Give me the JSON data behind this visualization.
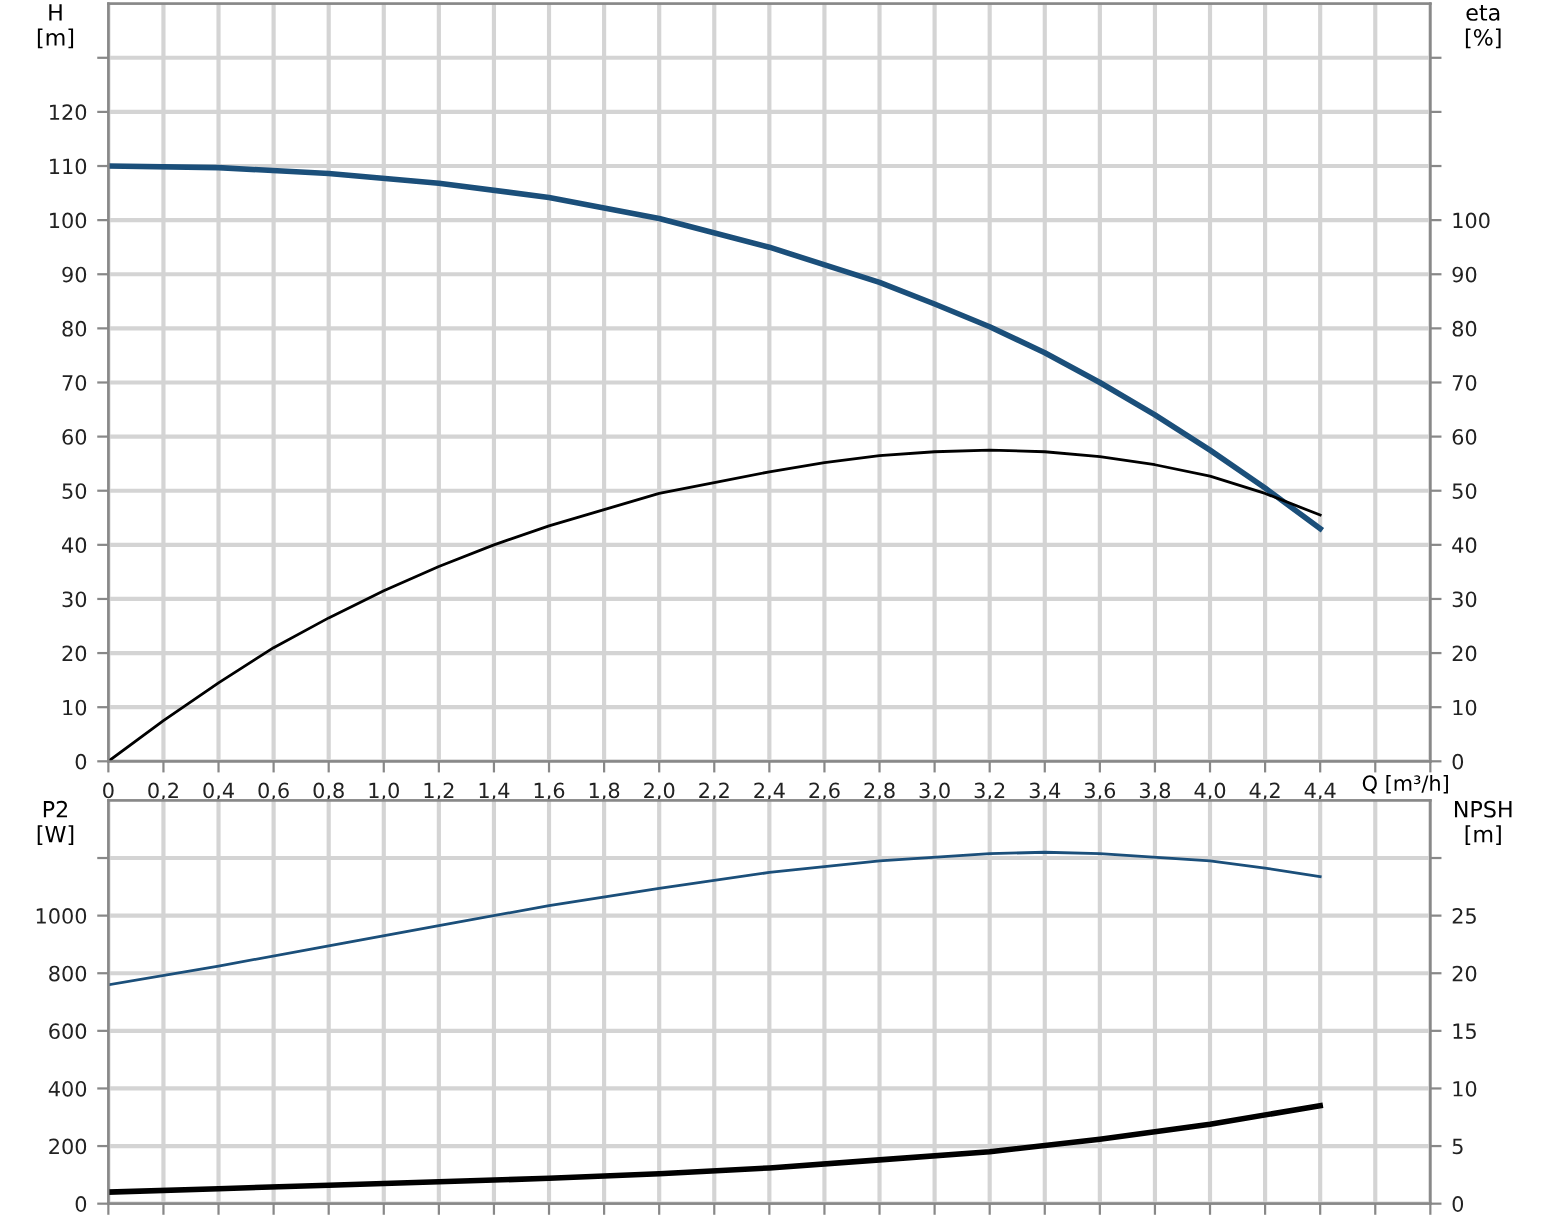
{
  "chart_data": [
    {
      "type": "line",
      "xlabel": "Q [m³/h]",
      "ylabel": "H\n[m]",
      "y2label": "eta\n[%]",
      "grid": true,
      "xlim": [
        0,
        4.8
      ],
      "xticks": [
        0,
        {
          "value": 0.2,
          "label": "0,2"
        },
        {
          "value": 0.4,
          "label": "0,4"
        },
        {
          "value": 0.6,
          "label": "0,6"
        },
        {
          "value": 0.8,
          "label": "0,8"
        },
        {
          "value": 1.0,
          "label": "1,0"
        },
        {
          "value": 1.2,
          "label": "1,2"
        },
        {
          "value": 1.4,
          "label": "1,4"
        },
        {
          "value": 1.6,
          "label": "1,6"
        },
        {
          "value": 1.8,
          "label": "1,8"
        },
        {
          "value": 2.0,
          "label": "2,0"
        },
        {
          "value": 2.2,
          "label": "2,2"
        },
        {
          "value": 2.4,
          "label": "2,4"
        },
        {
          "value": 2.6,
          "label": "2,6"
        },
        {
          "value": 2.8,
          "label": "2,8"
        },
        {
          "value": 3.0,
          "label": "3,0"
        },
        {
          "value": 3.2,
          "label": "3,2"
        },
        {
          "value": 3.4,
          "label": "3,4"
        },
        {
          "value": 3.6,
          "label": "3,6"
        },
        {
          "value": 3.8,
          "label": "3,8"
        },
        {
          "value": 4.0,
          "label": "4,0"
        },
        {
          "value": 4.2,
          "label": "4,2"
        },
        {
          "value": 4.4,
          "label": "4,4"
        },
        {
          "value": 4.6,
          "label": null
        },
        {
          "value": 4.8,
          "label": null
        }
      ],
      "ylim": [
        0,
        140
      ],
      "yticks": [
        0,
        10,
        20,
        30,
        40,
        50,
        60,
        70,
        80,
        90,
        100,
        110,
        120,
        {
          "value": 130,
          "label": null
        }
      ],
      "y2lim": [
        0,
        140
      ],
      "y2ticks": [
        0,
        10,
        20,
        30,
        40,
        50,
        60,
        70,
        80,
        90,
        100,
        {
          "value": 110,
          "label": null
        },
        {
          "value": 120,
          "label": null
        },
        {
          "value": 130,
          "label": null
        }
      ],
      "series": [
        {
          "color": "#1b4f7a",
          "x": [
            0,
            0.4,
            0.8,
            1.2,
            1.6,
            2.0,
            2.4,
            2.8,
            3.0,
            3.2,
            3.4,
            3.6,
            3.8,
            4.0,
            4.2,
            4.4
          ],
          "values": [
            110,
            109.7,
            108.6,
            106.8,
            104.2,
            100.3,
            95,
            88.5,
            84.5,
            80.3,
            75.5,
            70,
            64,
            57.5,
            50.5,
            43
          ]
        },
        {
          "color": "#000000",
          "axis": "y2",
          "x": [
            0,
            0.2,
            0.4,
            0.6,
            0.8,
            1.0,
            1.2,
            1.4,
            1.6,
            1.8,
            2.0,
            2.2,
            2.4,
            2.6,
            2.8,
            3.0,
            3.2,
            3.4,
            3.6,
            3.8,
            4.0,
            4.2,
            4.4
          ],
          "values": [
            0,
            7.5,
            14.5,
            21,
            26.5,
            31.5,
            36,
            40,
            43.5,
            46.5,
            49.5,
            51.5,
            53.5,
            55.2,
            56.5,
            57.2,
            57.5,
            57.2,
            56.3,
            54.8,
            52.7,
            49.5,
            45.5
          ]
        }
      ]
    },
    {
      "type": "line",
      "ylabel": "P2\n[W]",
      "y2label": "NPSH\n[m]",
      "grid": true,
      "tick_labels": "y",
      "xlim": [
        0,
        4.8
      ],
      "xticks": [
        0,
        0.2,
        0.4,
        0.6,
        0.8,
        1.0,
        1.2,
        1.4,
        1.6,
        1.8,
        2.0,
        2.2,
        2.4,
        2.6,
        2.8,
        3.0,
        3.2,
        3.4,
        3.6,
        3.8,
        4.0,
        4.2,
        4.4,
        4.6,
        4.8
      ],
      "ylim": [
        0,
        1400
      ],
      "yticks": [
        0,
        200,
        400,
        600,
        800,
        1000,
        {
          "value": 1200,
          "label": null
        }
      ],
      "y2lim": [
        0,
        35
      ],
      "y2ticks": [
        0,
        5,
        10,
        15,
        20,
        25,
        {
          "value": 30,
          "label": null
        }
      ],
      "series": [
        {
          "color": "#1b4f7a",
          "x": [
            0,
            0.4,
            0.8,
            1.2,
            1.6,
            2.0,
            2.4,
            2.8,
            3.2,
            3.4,
            3.6,
            4.0,
            4.2,
            4.4
          ],
          "values": [
            760,
            825,
            895,
            965,
            1035,
            1095,
            1150,
            1190,
            1215,
            1220,
            1215,
            1190,
            1165,
            1135
          ]
        },
        {
          "color": "#000000",
          "axis": "y2",
          "x": [
            0,
            0.4,
            0.8,
            1.2,
            1.6,
            2.0,
            2.4,
            2.8,
            3.2,
            3.6,
            4.0,
            4.4
          ],
          "values": [
            1,
            1.3,
            1.6,
            1.9,
            2.2,
            2.6,
            3.1,
            3.8,
            4.5,
            5.6,
            6.9,
            8.5
          ]
        }
      ]
    }
  ]
}
